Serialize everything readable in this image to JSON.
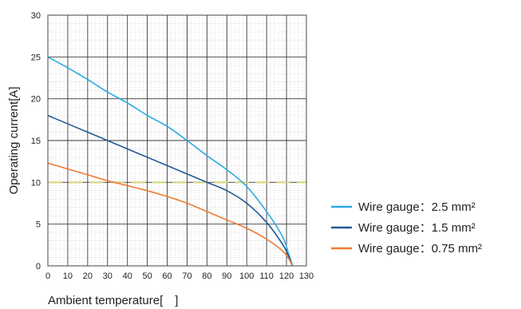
{
  "chart_data": {
    "type": "line",
    "xlabel": "Ambient temperature[　]",
    "ylabel": "Operating current[A]",
    "xlim": [
      0,
      130
    ],
    "ylim": [
      0,
      30
    ],
    "xticks": [
      0,
      10,
      20,
      30,
      40,
      50,
      60,
      70,
      80,
      90,
      100,
      110,
      120,
      130
    ],
    "yticks": [
      0,
      5,
      10,
      15,
      20,
      25,
      30
    ],
    "grid": true,
    "legend_position": "right",
    "reference_line": {
      "y": 10,
      "color": "#d4d47a",
      "style": "dashed"
    },
    "series": [
      {
        "name": "Wire gauge：2.5 mm²",
        "color": "#29abe2",
        "x": [
          0,
          10,
          20,
          30,
          40,
          50,
          60,
          70,
          80,
          90,
          100,
          110,
          118,
          121,
          123
        ],
        "y": [
          25,
          23.7,
          22.3,
          20.8,
          19.5,
          18.0,
          16.7,
          15.0,
          13.2,
          11.5,
          9.5,
          6.5,
          3.5,
          1.5,
          0
        ]
      },
      {
        "name": "Wire gauge：1.5 mm²",
        "color": "#1f5a96",
        "x": [
          0,
          10,
          20,
          30,
          40,
          50,
          60,
          70,
          80,
          90,
          100,
          110,
          118,
          121,
          123
        ],
        "y": [
          18,
          17.0,
          16.0,
          15.0,
          14.0,
          13.0,
          12.0,
          11.0,
          10.0,
          9.0,
          7.5,
          5.2,
          2.6,
          1.2,
          0
        ]
      },
      {
        "name": "Wire gauge：0.75 mm²",
        "color": "#f07a31",
        "x": [
          0,
          10,
          20,
          30,
          40,
          50,
          60,
          70,
          80,
          90,
          100,
          110,
          118,
          121,
          123
        ],
        "y": [
          12.3,
          11.6,
          10.9,
          10.2,
          9.6,
          9.0,
          8.3,
          7.5,
          6.5,
          5.5,
          4.5,
          3.2,
          1.8,
          0.9,
          0
        ]
      }
    ]
  }
}
